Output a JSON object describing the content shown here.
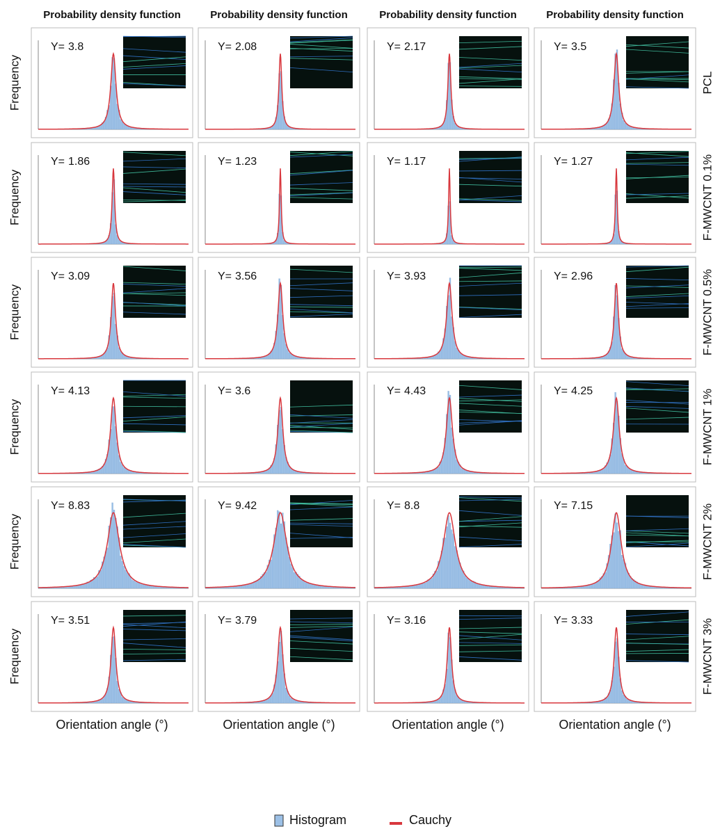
{
  "column_titles": [
    "Probability density function",
    "Probability density function",
    "Probability density function",
    "Probability density function"
  ],
  "y_axis_label": "Frequency",
  "x_axis_label": "Orientation angle (°)",
  "gamma_symbol": "Y=",
  "rows": [
    {
      "label": "PCL",
      "gammas": [
        3.8,
        2.08,
        2.17,
        3.5
      ]
    },
    {
      "label": "F-MWCNT 0.1%",
      "gammas": [
        1.86,
        1.23,
        1.17,
        1.27
      ]
    },
    {
      "label": "F-MWCNT 0.5%",
      "gammas": [
        3.09,
        3.56,
        3.93,
        2.96
      ]
    },
    {
      "label": "F-MWCNT 1%",
      "gammas": [
        4.13,
        3.6,
        4.43,
        4.25
      ]
    },
    {
      "label": "F-MWCNT 2%",
      "gammas": [
        8.83,
        9.42,
        8.8,
        7.15
      ]
    },
    {
      "label": "F-MWCNT 3%",
      "gammas": [
        3.51,
        3.79,
        3.16,
        3.33
      ]
    }
  ],
  "legend": {
    "histogram": "Histogram",
    "cauchy": "Cauchy"
  }
}
